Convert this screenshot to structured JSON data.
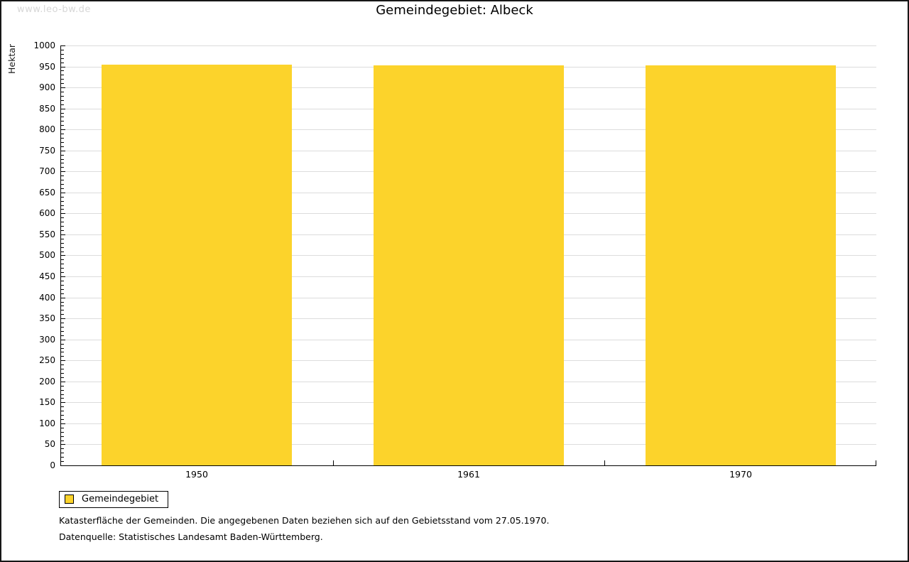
{
  "watermark": "www.leo-bw.de",
  "title": "Gemeindegebiet: Albeck",
  "chart_data": {
    "type": "bar",
    "title": "Gemeindegebiet: Albeck",
    "categories": [
      "1950",
      "1961",
      "1970"
    ],
    "series": [
      {
        "name": "Gemeindegebiet",
        "values": [
          955,
          953,
          952
        ]
      }
    ],
    "xlabel": "",
    "ylabel": "Hektar",
    "ylim": [
      0,
      1000
    ],
    "y_major_step": 50,
    "y_minor_step": 10,
    "grid": true,
    "legend_position": "bottom-left",
    "bar_color": "#FCD32B"
  },
  "legend": {
    "items": [
      {
        "label": "Gemeindegebiet",
        "color": "#FCD32B"
      }
    ]
  },
  "footnotes": [
    "Katasterfläche der Gemeinden. Die angegebenen Daten beziehen sich auf den Gebietsstand vom 27.05.1970.",
    "Datenquelle: Statistisches Landesamt Baden-Württemberg."
  ],
  "colors": {
    "bar": "#FCD32B",
    "grid": "#DCDCDC",
    "axis": "#000000",
    "watermark": "#D7D7D7",
    "background": "#FFFFFF"
  }
}
